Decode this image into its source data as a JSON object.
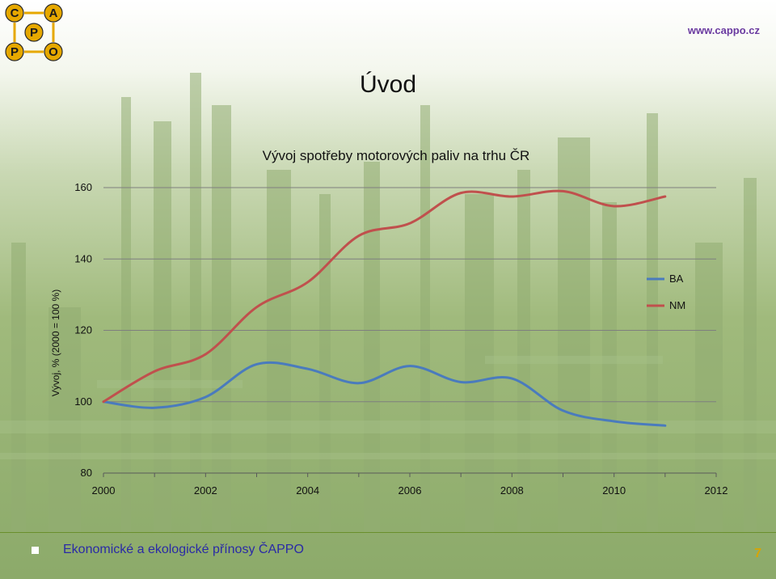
{
  "header": {
    "url": "www.cappo.cz",
    "logo": {
      "letters": [
        "C",
        "A",
        "P",
        "P",
        "O"
      ]
    }
  },
  "slide": {
    "heading": "Úvod"
  },
  "footer": {
    "text": "Ekonomické a ekologické přínosy ČAPPO",
    "page": "7"
  },
  "colors": {
    "BA": "#4a7bbd",
    "NM": "#c0504d",
    "background": "#8aa867",
    "footer_accent": "#d9a400"
  },
  "chart_data": {
    "type": "line",
    "title": "Vývoj spotřeby motorových paliv na trhu ČR",
    "xlabel": "",
    "ylabel": "Vývoj, % (2000 = 100 %)",
    "x": [
      2000,
      2001,
      2002,
      2003,
      2004,
      2005,
      2006,
      2007,
      2008,
      2009,
      2010,
      2011
    ],
    "xticks": [
      "2000",
      "2002",
      "2004",
      "2006",
      "2008",
      "2010",
      "2012"
    ],
    "xlim": [
      2000,
      2012
    ],
    "yticks": [
      "80",
      "100",
      "120",
      "140",
      "160"
    ],
    "ylim": [
      80,
      160
    ],
    "grid": "horizontal",
    "legend": "right",
    "series": [
      {
        "name": "BA",
        "values": [
          100,
          98.3,
          101.3,
          110.5,
          109.2,
          105.2,
          110,
          105.5,
          106.5,
          97.5,
          94.5,
          93.3
        ]
      },
      {
        "name": "NM",
        "values": [
          100,
          108.5,
          113.3,
          126.5,
          133.5,
          146.5,
          150,
          158.5,
          157.5,
          159,
          154.8,
          157.5
        ]
      }
    ]
  }
}
